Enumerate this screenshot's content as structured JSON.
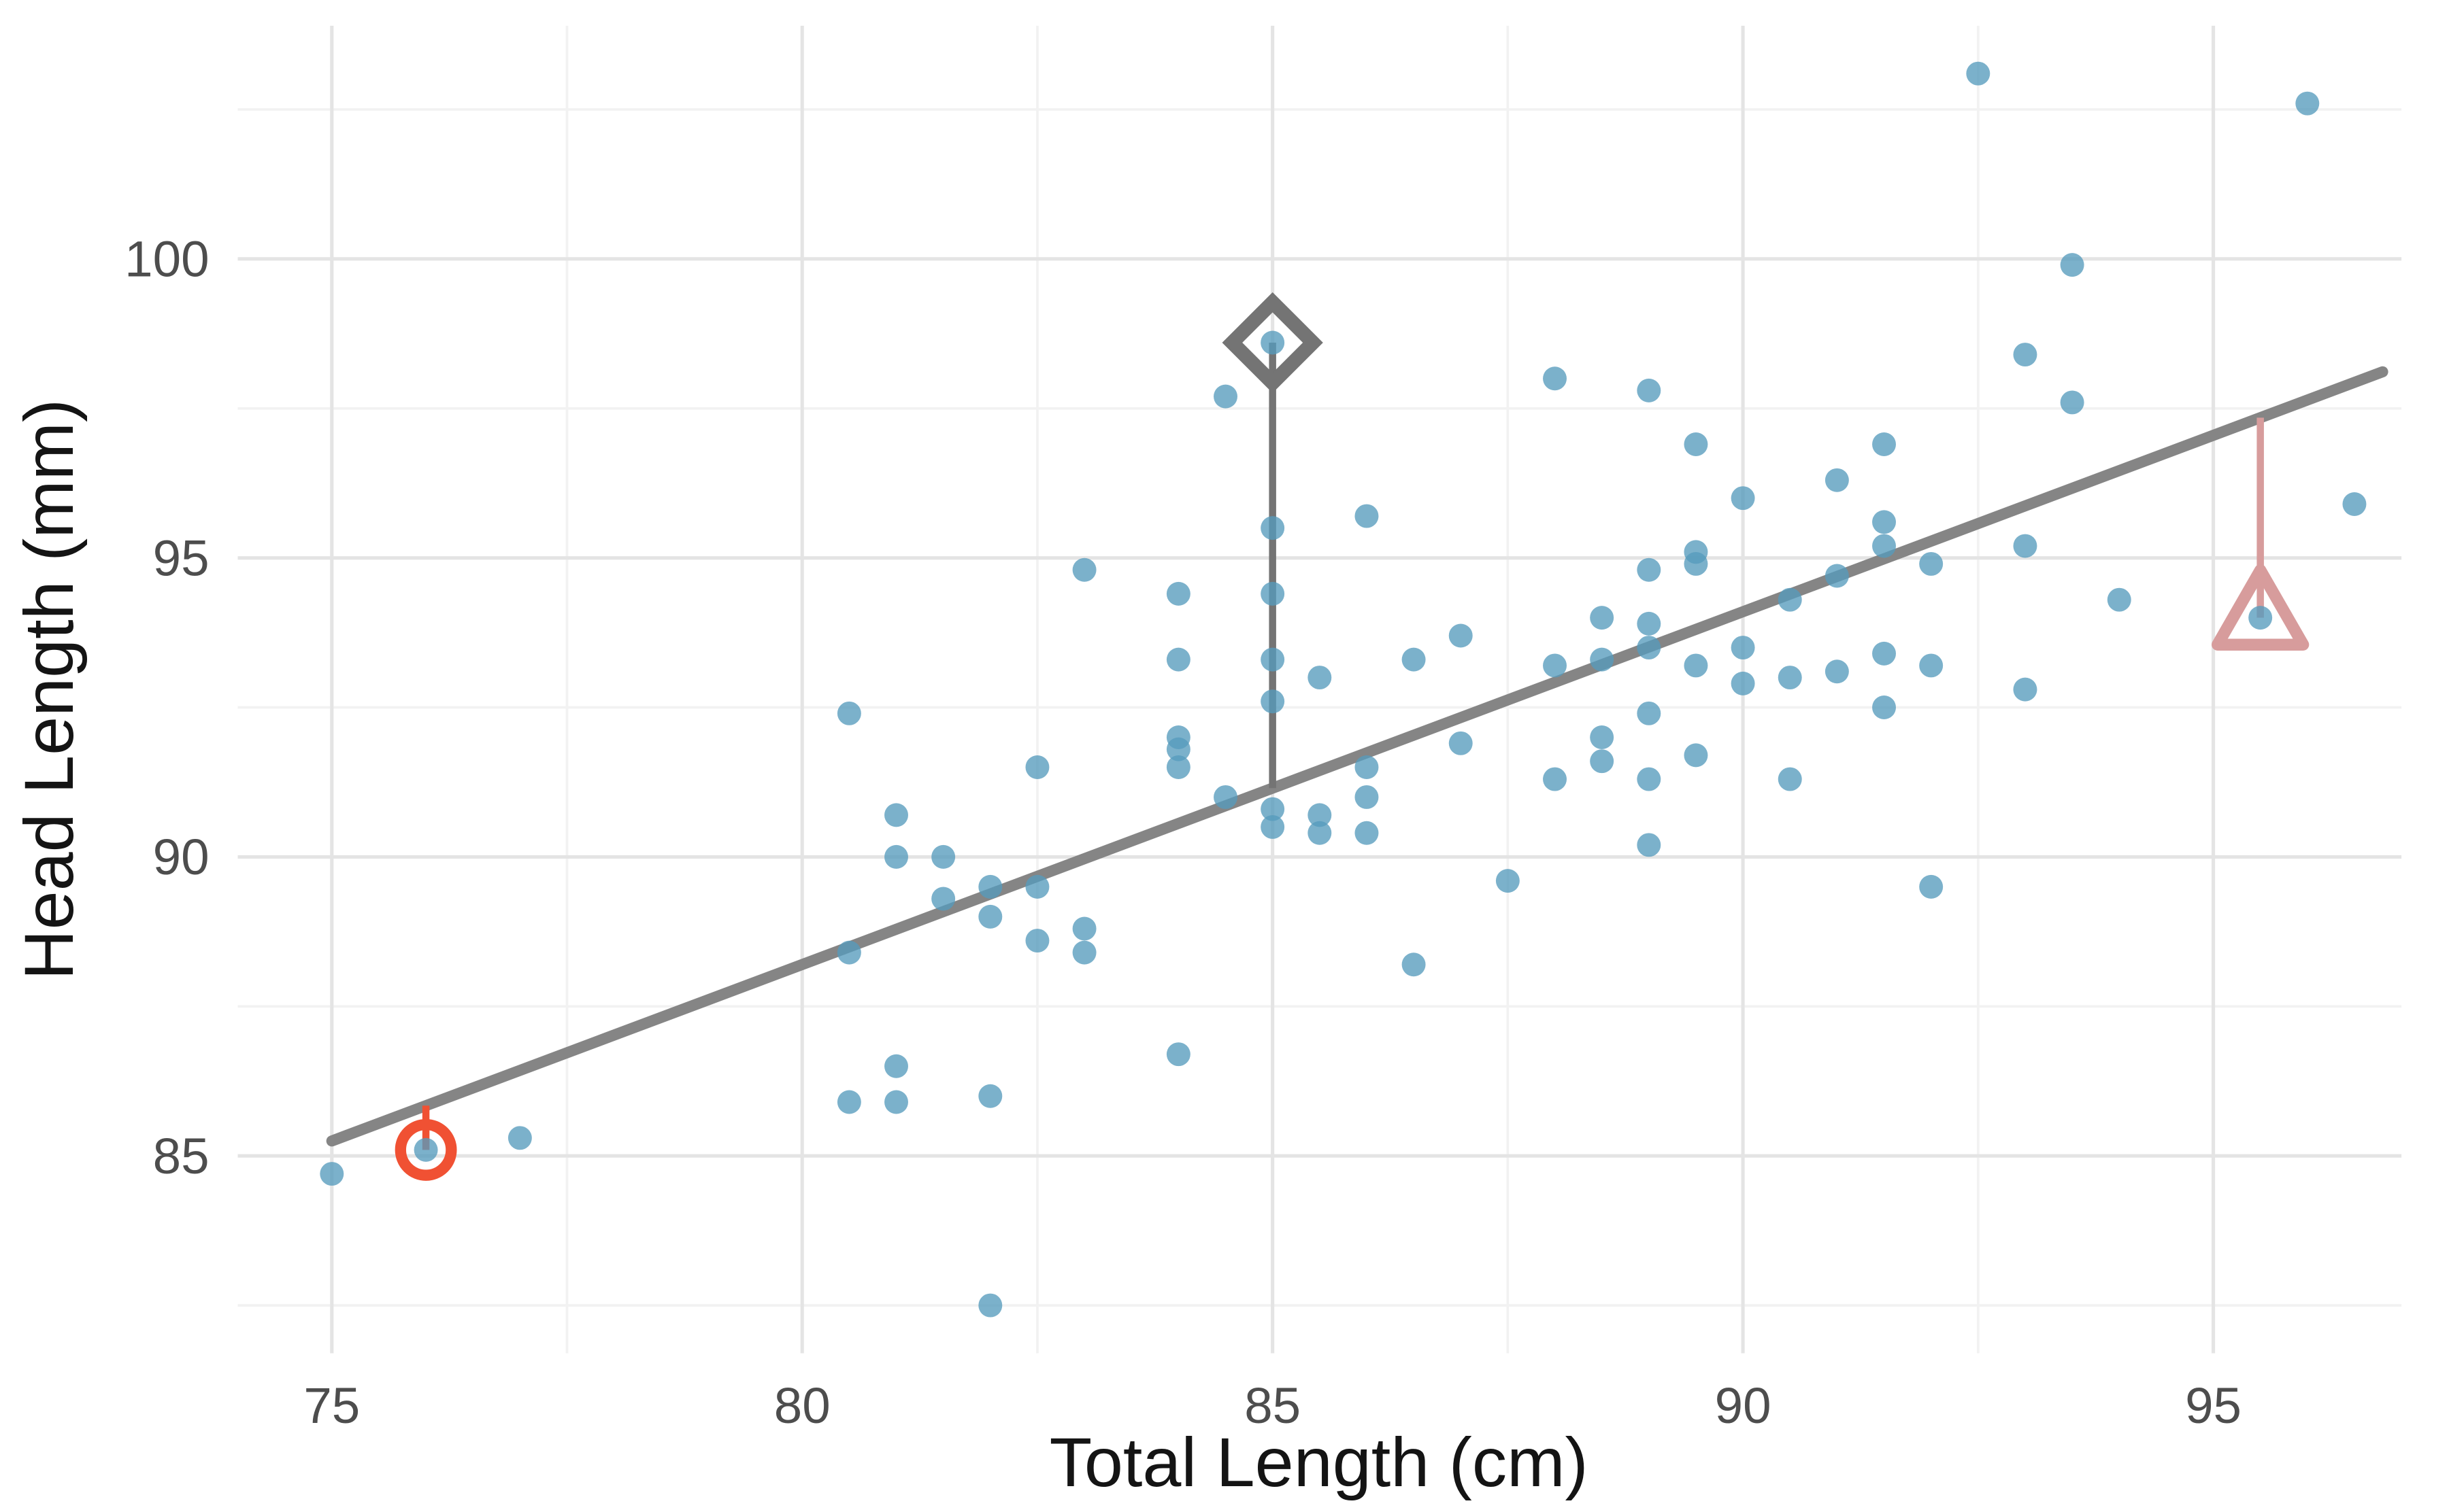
{
  "chart_data": {
    "type": "scatter",
    "title": "",
    "xlabel": "Total Length (cm)",
    "ylabel": "Head Length (mm)",
    "xlim": [
      74.0,
      97.0
    ],
    "ylim": [
      81.7,
      103.9
    ],
    "x_ticks": [
      75,
      80,
      85,
      90,
      95
    ],
    "y_ticks": [
      85,
      90,
      95,
      100
    ],
    "x_minor_gridlines": [
      77.5,
      82.5,
      87.5,
      92.5
    ],
    "y_minor_gridlines": [
      82.5,
      87.5,
      92.5,
      97.5,
      102.5
    ],
    "grid": true,
    "legend": "none",
    "colors": {
      "point": "#569BBD",
      "point_opacity": 0.78,
      "line": "#858585",
      "grid_major": "#E4E4E4",
      "grid_minor": "#F2F2F2",
      "tick_label": "#4D4D4D",
      "axis_title": "#141414"
    },
    "regression_line": {
      "intercept": 41.0,
      "slope": 0.59,
      "x_start": 75.0,
      "x_end": 96.8
    },
    "points": [
      [
        75.0,
        84.7
      ],
      [
        76.0,
        85.1
      ],
      [
        77.0,
        85.3
      ],
      [
        80.5,
        92.4
      ],
      [
        80.5,
        88.4
      ],
      [
        80.5,
        85.9
      ],
      [
        81.0,
        90.7
      ],
      [
        81.0,
        90.0
      ],
      [
        81.0,
        86.5
      ],
      [
        81.0,
        85.9
      ],
      [
        81.5,
        90.0
      ],
      [
        81.5,
        89.3
      ],
      [
        82.0,
        89.5
      ],
      [
        82.0,
        89.0
      ],
      [
        82.0,
        86.0
      ],
      [
        82.0,
        82.5
      ],
      [
        82.5,
        91.5
      ],
      [
        82.5,
        89.5
      ],
      [
        82.5,
        88.6
      ],
      [
        83.0,
        94.8
      ],
      [
        83.0,
        88.8
      ],
      [
        83.0,
        88.4
      ],
      [
        84.0,
        94.4
      ],
      [
        84.0,
        93.3
      ],
      [
        84.0,
        92.0
      ],
      [
        84.0,
        91.8
      ],
      [
        84.0,
        91.5
      ],
      [
        84.0,
        86.7
      ],
      [
        84.5,
        97.7
      ],
      [
        84.5,
        91.0
      ],
      [
        85.0,
        98.6
      ],
      [
        85.0,
        95.5
      ],
      [
        85.0,
        94.4
      ],
      [
        85.0,
        93.3
      ],
      [
        85.0,
        92.6
      ],
      [
        85.0,
        90.8
      ],
      [
        85.0,
        90.5
      ],
      [
        85.5,
        93.0
      ],
      [
        85.5,
        90.7
      ],
      [
        85.5,
        90.4
      ],
      [
        86.0,
        95.7
      ],
      [
        86.0,
        91.5
      ],
      [
        86.0,
        91.0
      ],
      [
        86.0,
        90.4
      ],
      [
        86.5,
        93.3
      ],
      [
        86.5,
        88.2
      ],
      [
        87.0,
        93.7
      ],
      [
        87.0,
        91.9
      ],
      [
        87.5,
        89.6
      ],
      [
        88.0,
        98.0
      ],
      [
        88.0,
        93.2
      ],
      [
        88.0,
        91.3
      ],
      [
        88.5,
        94.0
      ],
      [
        88.5,
        93.3
      ],
      [
        88.5,
        92.0
      ],
      [
        88.5,
        91.6
      ],
      [
        89.0,
        97.8
      ],
      [
        89.0,
        94.8
      ],
      [
        89.0,
        93.9
      ],
      [
        89.0,
        93.5
      ],
      [
        89.0,
        92.4
      ],
      [
        89.0,
        91.3
      ],
      [
        89.0,
        90.2
      ],
      [
        89.5,
        96.9
      ],
      [
        89.5,
        95.1
      ],
      [
        89.5,
        94.9
      ],
      [
        89.5,
        93.2
      ],
      [
        89.5,
        91.7
      ],
      [
        90.0,
        96.0
      ],
      [
        90.0,
        93.5
      ],
      [
        90.0,
        92.9
      ],
      [
        90.5,
        94.3
      ],
      [
        90.5,
        93.0
      ],
      [
        90.5,
        91.3
      ],
      [
        91.0,
        96.3
      ],
      [
        91.0,
        94.7
      ],
      [
        91.0,
        93.1
      ],
      [
        91.5,
        96.9
      ],
      [
        91.5,
        95.6
      ],
      [
        91.5,
        95.2
      ],
      [
        91.5,
        93.4
      ],
      [
        91.5,
        92.5
      ],
      [
        92.0,
        94.9
      ],
      [
        92.0,
        93.2
      ],
      [
        92.0,
        89.5
      ],
      [
        92.5,
        103.1
      ],
      [
        93.0,
        98.4
      ],
      [
        93.0,
        95.2
      ],
      [
        93.0,
        92.8
      ],
      [
        93.5,
        99.9
      ],
      [
        93.5,
        97.6
      ],
      [
        94.0,
        94.3
      ],
      [
        95.5,
        94.0
      ],
      [
        96.0,
        102.6
      ],
      [
        96.5,
        95.9
      ]
    ],
    "annotations": [
      {
        "name": "circled-outlier",
        "shape": "circle",
        "x": 76.0,
        "y": 85.1,
        "color": "#F05133",
        "residual_to_line": true
      },
      {
        "name": "diamond-outlier",
        "shape": "diamond",
        "x": 85.0,
        "y": 98.6,
        "color": "#747474",
        "residual_to_line": true
      },
      {
        "name": "triangle-outlier",
        "shape": "triangle",
        "x": 95.5,
        "y": 94.0,
        "color": "#D79C9C",
        "residual_to_line": true
      }
    ]
  }
}
